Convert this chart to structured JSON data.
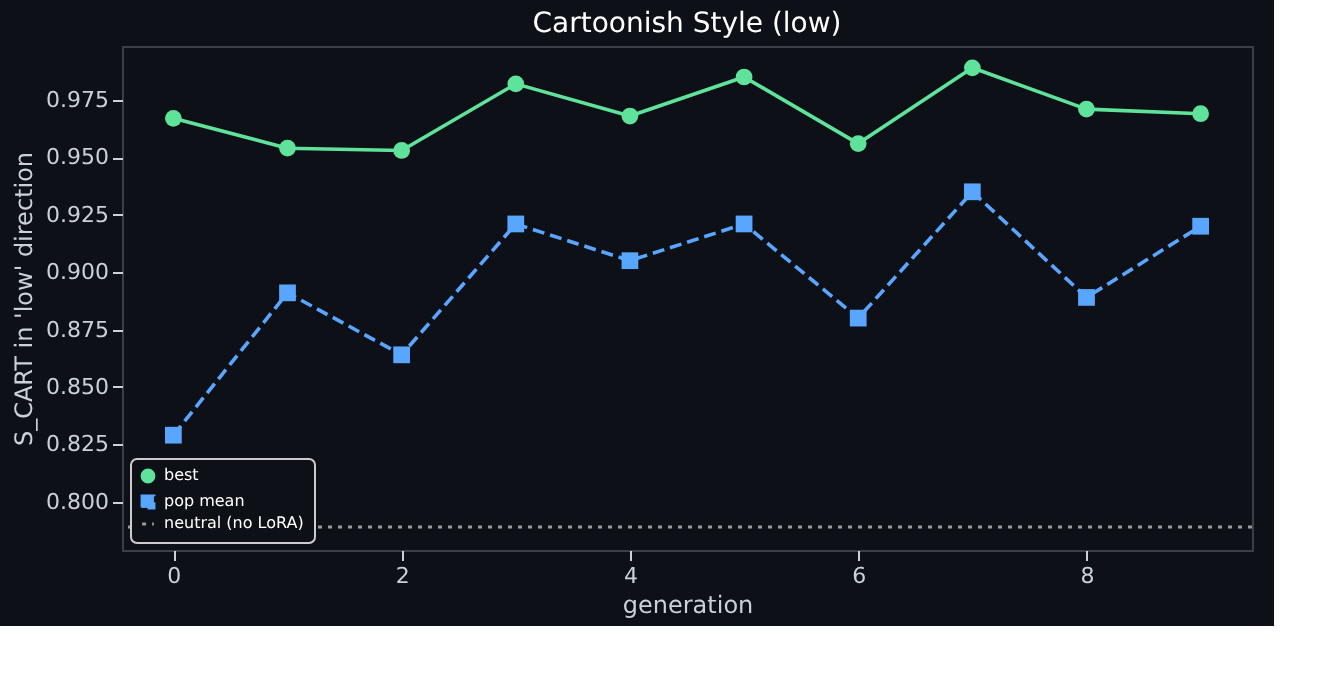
{
  "chart_data": {
    "type": "line",
    "title": "Cartoonish Style (low)",
    "xlabel": "generation",
    "ylabel": "S_CART in 'low' direction",
    "x": [
      0,
      1,
      2,
      3,
      4,
      5,
      6,
      7,
      8,
      9
    ],
    "series": [
      {
        "name": "best",
        "color": "#5fe39a",
        "marker": "circle",
        "line_style": "solid",
        "values": [
          0.967,
          0.954,
          0.953,
          0.982,
          0.968,
          0.985,
          0.956,
          0.989,
          0.971,
          0.969
        ]
      },
      {
        "name": "pop mean",
        "color": "#58a6ff",
        "marker": "square",
        "line_style": "dashed",
        "values": [
          0.829,
          0.891,
          0.864,
          0.921,
          0.905,
          0.921,
          0.88,
          0.935,
          0.889,
          0.92
        ]
      }
    ],
    "ref_lines": [
      {
        "axis": "y",
        "value": 0.789,
        "label": "neutral (no LoRA)",
        "color": "#999999",
        "line_style": "dotted"
      }
    ],
    "xlim": [
      -0.45,
      9.45
    ],
    "ylim": [
      0.779,
      0.9985
    ],
    "xticks": [
      0,
      2,
      4,
      6,
      8
    ],
    "yticks": [
      {
        "value": 0.8,
        "label": "0.800"
      },
      0.825,
      {
        "value": 0.85,
        "label": "0.850"
      },
      0.875,
      {
        "value": 0.9,
        "label": "0.900"
      },
      0.925,
      {
        "value": 0.95,
        "label": "0.950"
      },
      0.975
    ],
    "grid": false,
    "legend": "bottom left"
  }
}
